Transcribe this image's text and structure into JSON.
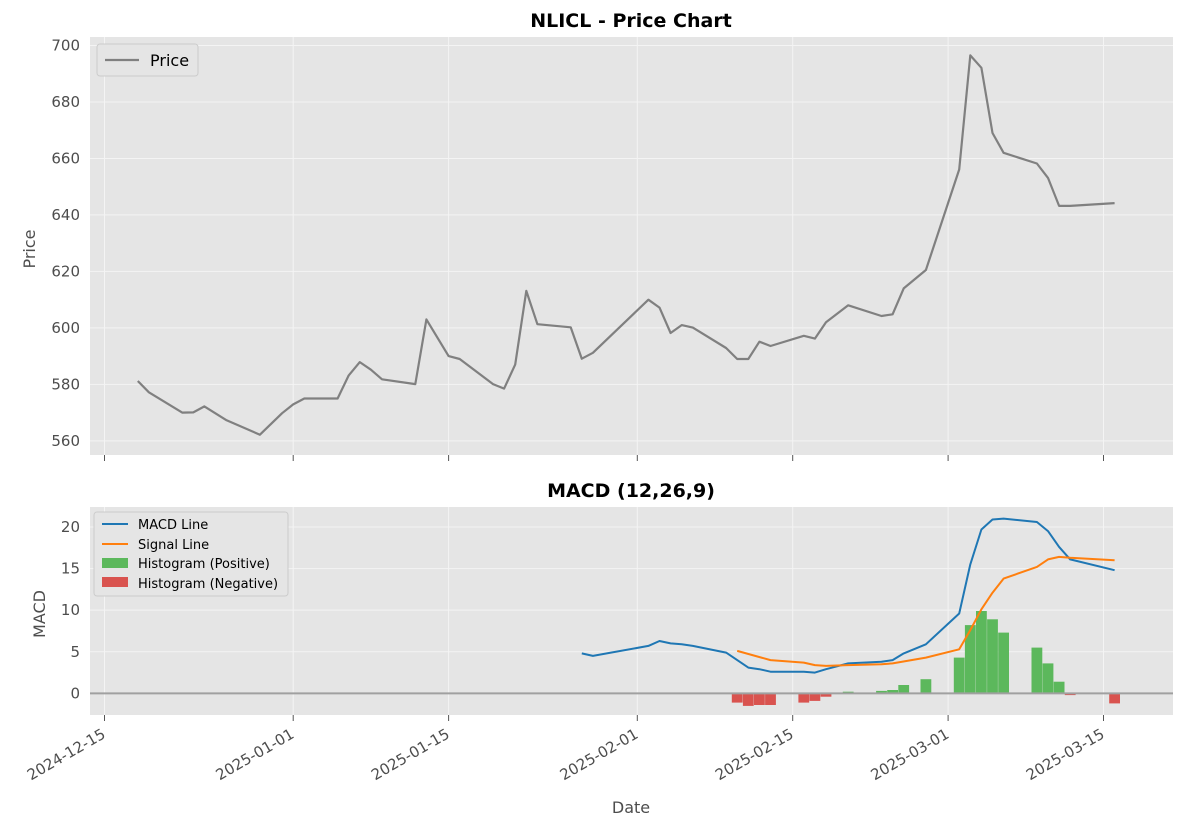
{
  "chart_data": [
    {
      "type": "line",
      "title": "NLICL - Price Chart",
      "xlabel": "",
      "ylabel": "Price",
      "ylim": [
        555,
        703
      ],
      "yticks": [
        560,
        580,
        600,
        620,
        640,
        660,
        680,
        700
      ],
      "grid": true,
      "legend": "top-left",
      "series": [
        {
          "name": "Price",
          "color": "#808080",
          "points": [
            [
              "2024-12-18",
              581.2
            ],
            [
              "2024-12-19",
              577.2
            ],
            [
              "2024-12-22",
              570.0
            ],
            [
              "2024-12-23",
              570.1
            ],
            [
              "2024-12-24",
              572.2
            ],
            [
              "2024-12-26",
              567.3
            ],
            [
              "2024-12-29",
              562.2
            ],
            [
              "2024-12-31",
              569.8
            ],
            [
              "2025-01-01",
              572.9
            ],
            [
              "2025-01-02",
              575.0
            ],
            [
              "2025-01-05",
              575.0
            ],
            [
              "2025-01-06",
              583.2
            ],
            [
              "2025-01-07",
              587.9
            ],
            [
              "2025-01-08",
              585.2
            ],
            [
              "2025-01-09",
              581.8
            ],
            [
              "2025-01-12",
              580.1
            ],
            [
              "2025-01-13",
              603.0
            ],
            [
              "2025-01-15",
              590.0
            ],
            [
              "2025-01-16",
              589.0
            ],
            [
              "2025-01-19",
              580.1
            ],
            [
              "2025-01-20",
              578.5
            ],
            [
              "2025-01-21",
              587.0
            ],
            [
              "2025-01-22",
              613.1
            ],
            [
              "2025-01-23",
              601.3
            ],
            [
              "2025-01-26",
              600.2
            ],
            [
              "2025-01-27",
              589.1
            ],
            [
              "2025-01-28",
              591.2
            ],
            [
              "2025-02-02",
              610.0
            ],
            [
              "2025-02-03",
              607.2
            ],
            [
              "2025-02-04",
              598.2
            ],
            [
              "2025-02-05",
              601.0
            ],
            [
              "2025-02-06",
              600.1
            ],
            [
              "2025-02-09",
              592.9
            ],
            [
              "2025-02-10",
              589.0
            ],
            [
              "2025-02-11",
              589.0
            ],
            [
              "2025-02-12",
              595.1
            ],
            [
              "2025-02-13",
              593.6
            ],
            [
              "2025-02-16",
              597.2
            ],
            [
              "2025-02-17",
              596.2
            ],
            [
              "2025-02-18",
              602.0
            ],
            [
              "2025-02-20",
              608.0
            ],
            [
              "2025-02-23",
              604.2
            ],
            [
              "2025-02-24",
              604.8
            ],
            [
              "2025-02-25",
              614.0
            ],
            [
              "2025-02-27",
              620.5
            ],
            [
              "2025-03-02",
              656.1
            ],
            [
              "2025-03-03",
              696.5
            ],
            [
              "2025-03-04",
              692.1
            ],
            [
              "2025-03-05",
              669.0
            ],
            [
              "2025-03-06",
              662.0
            ],
            [
              "2025-03-09",
              658.2
            ],
            [
              "2025-03-10",
              653.1
            ],
            [
              "2025-03-11",
              643.2
            ],
            [
              "2025-03-12",
              643.2
            ],
            [
              "2025-03-16",
              644.2
            ]
          ]
        }
      ]
    },
    {
      "type": "line",
      "title": "MACD (12,26,9)",
      "xlabel": "Date",
      "ylabel": "MACD",
      "ylim": [
        -2.6,
        22.4
      ],
      "yticks": [
        0,
        5,
        10,
        15,
        20
      ],
      "xticks": [
        "2024-12-15",
        "2025-01-01",
        "2025-01-15",
        "2025-02-01",
        "2025-02-15",
        "2025-03-01",
        "2025-03-15"
      ],
      "grid": true,
      "legend": "top-left",
      "zero_line_color": "#a0a0a0",
      "series": [
        {
          "name": "MACD Line",
          "color": "#1f77b4",
          "points": [
            [
              "2025-01-27",
              4.8
            ],
            [
              "2025-01-28",
              4.5
            ],
            [
              "2025-02-02",
              5.7
            ],
            [
              "2025-02-03",
              6.3
            ],
            [
              "2025-02-04",
              6.0
            ],
            [
              "2025-02-05",
              5.9
            ],
            [
              "2025-02-06",
              5.7
            ],
            [
              "2025-02-09",
              4.9
            ],
            [
              "2025-02-11",
              3.1
            ],
            [
              "2025-02-12",
              2.9
            ],
            [
              "2025-02-13",
              2.6
            ],
            [
              "2025-02-16",
              2.6
            ],
            [
              "2025-02-17",
              2.5
            ],
            [
              "2025-02-18",
              2.9
            ],
            [
              "2025-02-20",
              3.6
            ],
            [
              "2025-02-23",
              3.8
            ],
            [
              "2025-02-24",
              4.0
            ],
            [
              "2025-02-25",
              4.8
            ],
            [
              "2025-02-27",
              5.9
            ],
            [
              "2025-03-02",
              9.6
            ],
            [
              "2025-03-03",
              15.5
            ],
            [
              "2025-03-04",
              19.7
            ],
            [
              "2025-03-05",
              20.9
            ],
            [
              "2025-03-06",
              21.0
            ],
            [
              "2025-03-09",
              20.6
            ],
            [
              "2025-03-10",
              19.5
            ],
            [
              "2025-03-11",
              17.6
            ],
            [
              "2025-03-12",
              16.1
            ],
            [
              "2025-03-16",
              14.8
            ]
          ]
        },
        {
          "name": "Signal Line",
          "color": "#ff7f0e",
          "points": [
            [
              "2025-02-10",
              5.1
            ],
            [
              "2025-02-13",
              4.0
            ],
            [
              "2025-02-16",
              3.7
            ],
            [
              "2025-02-17",
              3.4
            ],
            [
              "2025-02-18",
              3.3
            ],
            [
              "2025-02-20",
              3.4
            ],
            [
              "2025-02-23",
              3.5
            ],
            [
              "2025-02-24",
              3.6
            ],
            [
              "2025-02-27",
              4.3
            ],
            [
              "2025-03-02",
              5.3
            ],
            [
              "2025-03-03",
              7.6
            ],
            [
              "2025-03-04",
              10.1
            ],
            [
              "2025-03-05",
              12.1
            ],
            [
              "2025-03-06",
              13.8
            ],
            [
              "2025-03-09",
              15.2
            ],
            [
              "2025-03-10",
              16.1
            ],
            [
              "2025-03-11",
              16.4
            ],
            [
              "2025-03-12",
              16.3
            ],
            [
              "2025-03-16",
              16.0
            ]
          ]
        }
      ],
      "histogram": {
        "positive_name": "Histogram (Positive)",
        "negative_name": "Histogram (Negative)",
        "positive_color": "#5cb85c",
        "negative_color": "#d9534f",
        "points": [
          [
            "2025-02-10",
            -1.1
          ],
          [
            "2025-02-11",
            -1.5
          ],
          [
            "2025-02-12",
            -1.4
          ],
          [
            "2025-02-13",
            -1.4
          ],
          [
            "2025-02-16",
            -1.1
          ],
          [
            "2025-02-17",
            -0.9
          ],
          [
            "2025-02-18",
            -0.4
          ],
          [
            "2025-02-20",
            0.2
          ],
          [
            "2025-02-23",
            0.3
          ],
          [
            "2025-02-24",
            0.4
          ],
          [
            "2025-02-25",
            1.0
          ],
          [
            "2025-02-27",
            1.7
          ],
          [
            "2025-03-02",
            4.3
          ],
          [
            "2025-03-03",
            8.2
          ],
          [
            "2025-03-04",
            9.9
          ],
          [
            "2025-03-05",
            8.9
          ],
          [
            "2025-03-06",
            7.3
          ],
          [
            "2025-03-09",
            5.5
          ],
          [
            "2025-03-10",
            3.6
          ],
          [
            "2025-03-11",
            1.4
          ],
          [
            "2025-03-12",
            -0.2
          ],
          [
            "2025-03-16",
            -1.2
          ]
        ]
      }
    }
  ]
}
